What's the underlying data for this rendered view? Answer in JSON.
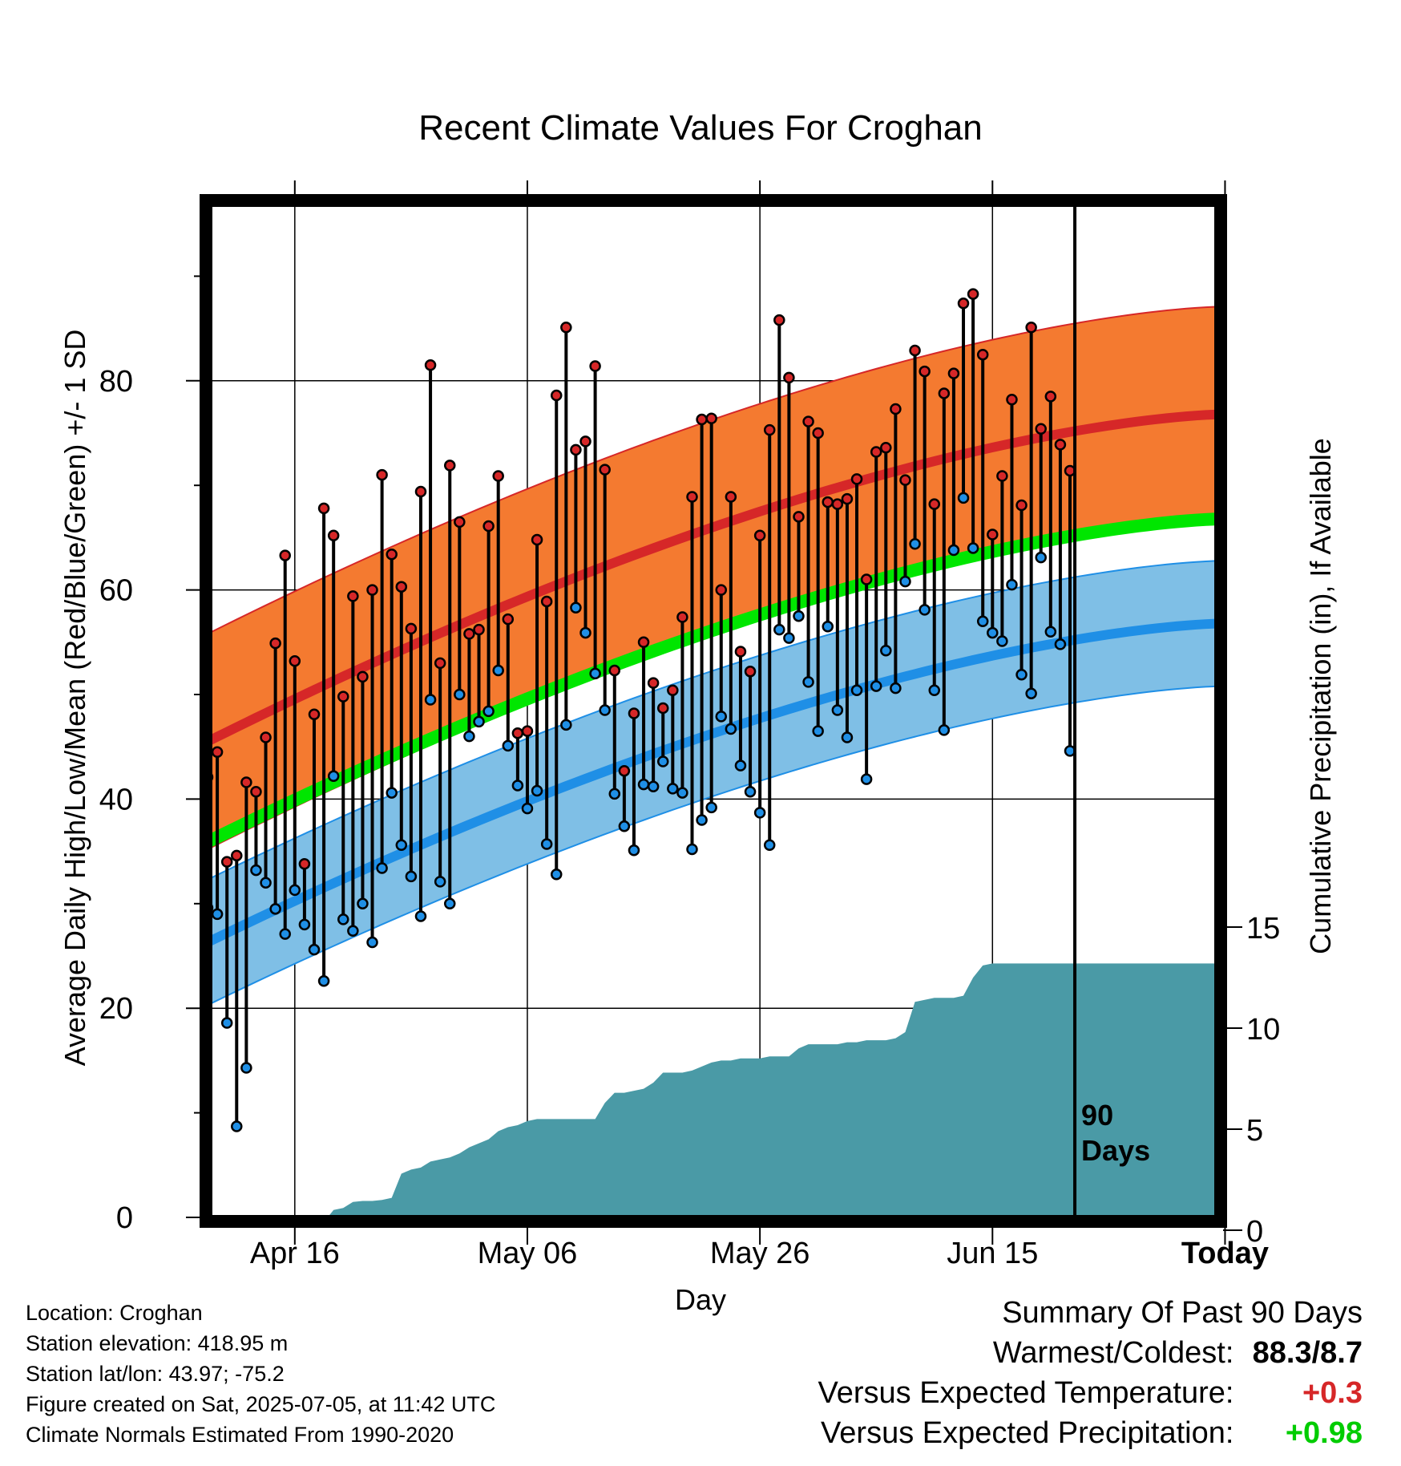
{
  "chart_data": {
    "type": "line",
    "title": "Recent Climate Values For Croghan",
    "xlabel": "Day",
    "ylabel": "Average Daily High/Low/Mean (Red/Blue/Green) +/- 1 SD",
    "y2label": "Cumulative Precipitation (in), If Available",
    "x_ticks": [
      "Apr 16",
      "May 06",
      "May 26",
      "Jun 15",
      "Today"
    ],
    "y_ticks": [
      0,
      20,
      40,
      60,
      80
    ],
    "y2_ticks": [
      0,
      5,
      10,
      15
    ],
    "ylim": [
      0,
      90
    ],
    "y2lim": [
      0,
      25
    ],
    "today_label": "90\nDays",
    "colors": {
      "high": "#d62728",
      "low": "#1f8fe6",
      "mean": "#00e600",
      "high_band": "#f47a30",
      "low_band": "#7fbfe6",
      "precip": "#4a9aa6",
      "positive_temp": "#d62728",
      "positive_precip": "#00cc00"
    },
    "daily_highs": [
      42.1,
      44.5,
      34.0,
      34.6,
      41.6,
      40.7,
      45.9,
      54.9,
      63.3,
      53.2,
      33.8,
      48.1,
      67.8,
      65.2,
      49.8,
      59.4,
      51.7,
      60.0,
      71.0,
      63.4,
      60.3,
      56.3,
      69.4,
      81.5,
      53.0,
      71.9,
      66.5,
      55.8,
      56.2,
      66.1,
      70.9,
      57.2,
      46.3,
      46.5,
      64.8,
      58.9,
      78.6,
      85.1,
      73.4,
      74.2,
      81.4,
      71.5,
      52.3,
      42.7,
      48.2,
      55.0,
      51.1,
      48.7,
      50.4,
      57.4,
      68.9,
      76.3,
      76.4,
      60.0,
      68.9,
      54.1,
      52.2,
      65.2,
      75.3,
      85.8,
      80.3,
      67.0,
      76.1,
      75.0,
      68.4,
      68.2,
      68.7,
      70.6,
      61.0,
      73.2,
      73.6,
      77.3,
      70.5,
      82.9,
      80.9,
      68.2,
      78.8,
      80.7,
      87.4,
      88.3,
      82.5,
      65.3,
      70.9,
      78.2,
      68.1,
      85.1,
      75.4,
      78.5,
      73.9,
      71.4
    ],
    "daily_lows": [
      29.6,
      29.0,
      18.6,
      8.7,
      14.3,
      33.2,
      32.0,
      29.5,
      27.1,
      31.3,
      28.0,
      25.6,
      22.6,
      42.2,
      28.5,
      27.4,
      30.0,
      26.3,
      33.4,
      40.6,
      35.6,
      32.6,
      28.8,
      49.5,
      32.1,
      30.0,
      50.0,
      46.0,
      47.4,
      48.4,
      52.3,
      45.1,
      41.3,
      39.1,
      40.8,
      35.7,
      32.8,
      47.1,
      58.3,
      55.9,
      52.0,
      48.5,
      40.5,
      37.4,
      35.1,
      41.4,
      41.2,
      43.6,
      41.0,
      40.6,
      35.2,
      38.0,
      39.2,
      47.9,
      46.7,
      43.2,
      40.7,
      38.7,
      35.6,
      56.2,
      55.4,
      57.5,
      51.2,
      46.5,
      56.5,
      48.5,
      45.9,
      50.4,
      41.9,
      50.8,
      54.2,
      50.6,
      60.8,
      64.4,
      58.1,
      50.4,
      46.6,
      63.8,
      68.8,
      64.0,
      57.0,
      55.9,
      55.1,
      60.5,
      51.9,
      50.1,
      63.1,
      56.0,
      54.8,
      44.6
    ],
    "normal_high": {
      "start": 45.5,
      "end": 76.8,
      "sd": 10.3
    },
    "normal_low": {
      "start": 26.3,
      "end": 56.8,
      "sd": 6.0
    },
    "normal_mean": {
      "start": 35.9,
      "end": 66.8
    },
    "cumulative_precip": [
      0,
      0,
      0,
      0,
      0,
      0,
      0,
      0,
      0,
      0.05,
      0.2,
      0.35,
      0.4,
      1.0,
      1.1,
      1.4,
      1.45,
      1.45,
      1.5,
      1.6,
      2.8,
      3.0,
      3.1,
      3.4,
      3.5,
      3.6,
      3.8,
      4.1,
      4.3,
      4.5,
      4.9,
      5.1,
      5.2,
      5.4,
      5.5,
      5.5,
      5.5,
      5.5,
      5.5,
      5.5,
      5.5,
      6.3,
      6.8,
      6.8,
      6.9,
      7.0,
      7.3,
      7.8,
      7.8,
      7.8,
      7.9,
      8.1,
      8.3,
      8.4,
      8.4,
      8.5,
      8.5,
      8.5,
      8.6,
      8.6,
      8.6,
      9.0,
      9.2,
      9.2,
      9.2,
      9.2,
      9.3,
      9.3,
      9.4,
      9.4,
      9.4,
      9.5,
      9.8,
      11.3,
      11.4,
      11.5,
      11.5,
      11.5,
      11.6,
      12.5,
      13.1,
      13.2,
      13.2,
      13.2,
      13.2,
      13.2,
      13.2,
      13.2,
      13.2,
      13.2
    ]
  },
  "info": {
    "location": "Location: Croghan",
    "elevation": "Station elevation: 418.95 m",
    "latlon": "Station lat/lon: 43.97; -75.2",
    "created": "Figure created on Sat, 2025-07-05, at 11:42 UTC",
    "normals": "Climate Normals Estimated From 1990-2020"
  },
  "summary": {
    "heading": "Summary Of Past 90 Days",
    "warmest_coldest_label": "Warmest/Coldest:",
    "warmest_coldest_value": "88.3/8.7",
    "temp_label": "Versus Expected Temperature:",
    "temp_value": "+0.3",
    "precip_label": "Versus Expected Precipitation:",
    "precip_value": "+0.98"
  }
}
